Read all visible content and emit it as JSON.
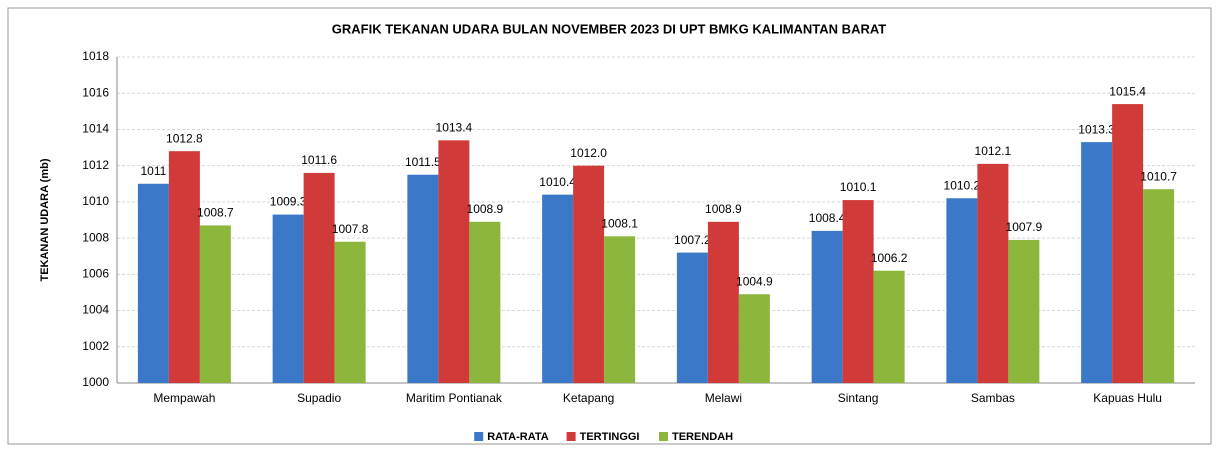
{
  "chart_data": {
    "type": "bar",
    "title": "GRAFIK TEKANAN UDARA BULAN NOVEMBER 2023 DI UPT BMKG KALIMANTAN BARAT",
    "y_label": "TEKANAN UDARA (mb)",
    "categories": [
      "Mempawah",
      "Supadio",
      "Maritim Pontianak",
      "Ketapang",
      "Melawi",
      "Sintang",
      "Sambas",
      "Kapuas Hulu"
    ],
    "series": [
      {
        "name": "RATA-RATA",
        "color": "#3b78c8",
        "values": [
          1011,
          1009.3,
          1011.5,
          1010.4,
          1007.2,
          1008.4,
          1010.2,
          1013.3
        ]
      },
      {
        "name": "TERTINGGI",
        "color": "#d03a38",
        "values": [
          1012.8,
          1011.6,
          1013.4,
          1012.0,
          1008.9,
          1010.1,
          1012.1,
          1015.4
        ],
        "value_labels": [
          "1012.8",
          "1011.6",
          "1013.4",
          "1012.0",
          "1008.9",
          "1010.1",
          "1012.1",
          "1015.4"
        ]
      },
      {
        "name": "TERENDAH",
        "color": "#8cb63c",
        "values": [
          1008.7,
          1007.8,
          1008.9,
          1008.1,
          1004.9,
          1006.2,
          1007.9,
          1010.7
        ]
      }
    ],
    "ylim": [
      1000,
      1018
    ],
    "yticks": [
      1000,
      1002,
      1004,
      1006,
      1008,
      1010,
      1012,
      1014,
      1016,
      1018
    ],
    "grid": true,
    "legend": "bottom"
  }
}
